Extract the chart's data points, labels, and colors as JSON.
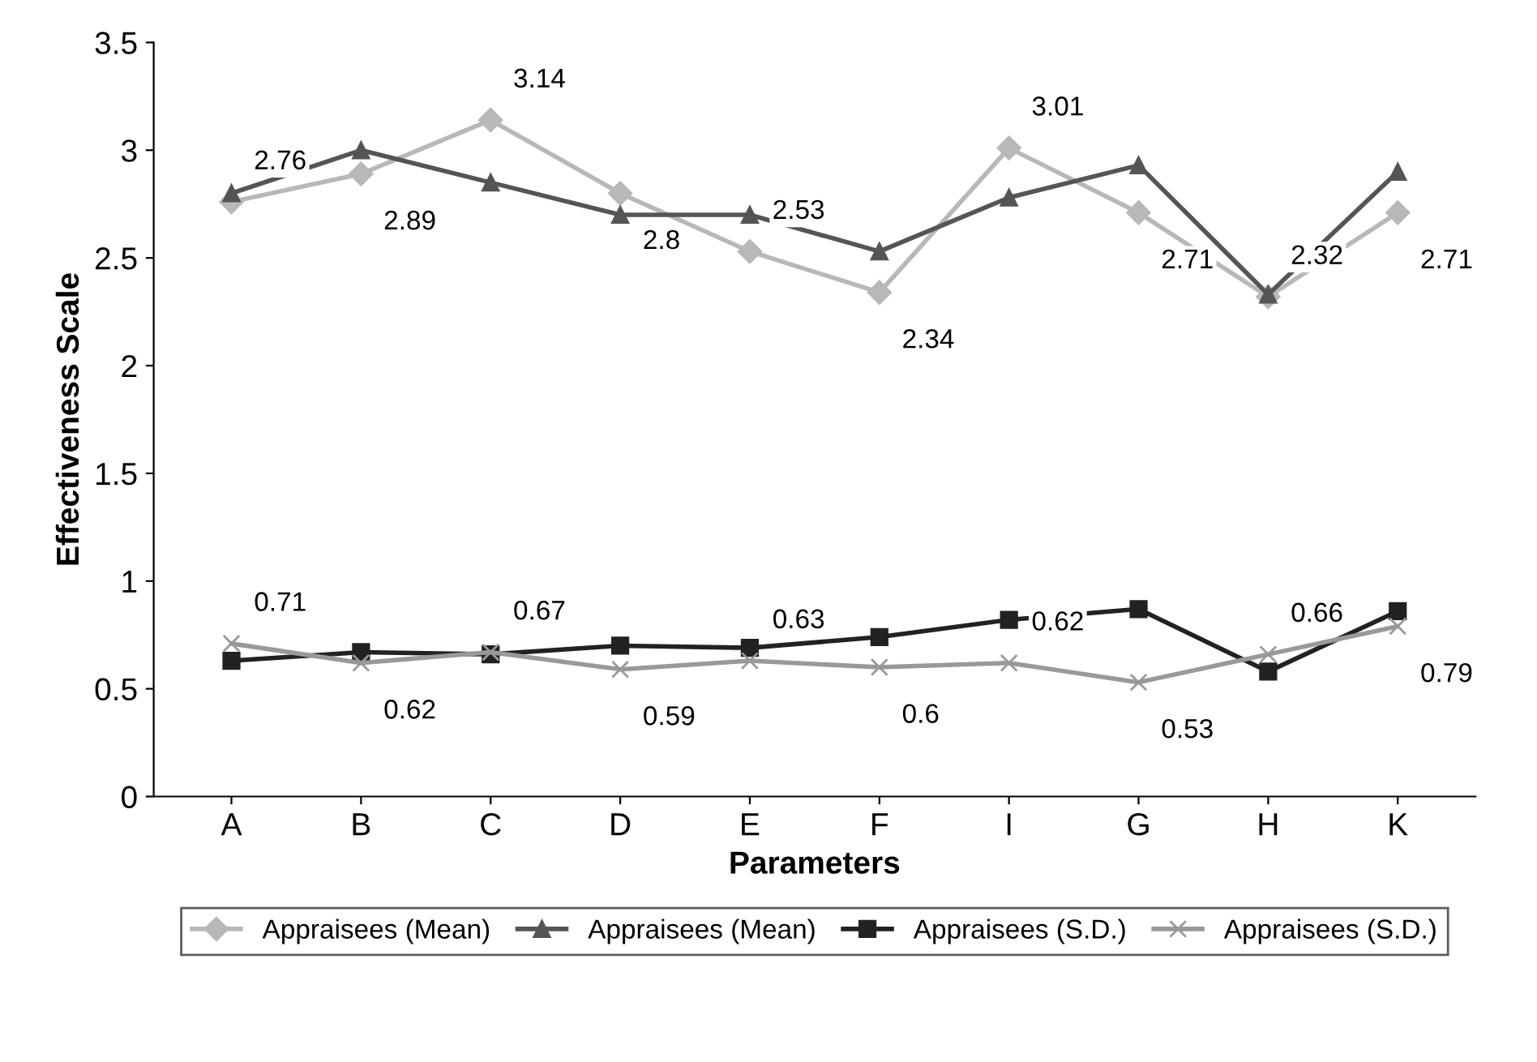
{
  "chart_data": {
    "type": "line",
    "xlabel": "Parameters",
    "ylabel": "Effectiveness Scale",
    "categories": [
      "A",
      "B",
      "C",
      "D",
      "E",
      "F",
      "I",
      "G",
      "H",
      "K"
    ],
    "ylim": [
      0,
      3.5
    ],
    "yticks": [
      0,
      0.5,
      1,
      1.5,
      2,
      2.5,
      3,
      3.5
    ],
    "grid": false,
    "legend": "bottom",
    "series": [
      {
        "name": "Appraisees (Mean)",
        "color": "#b8b8b8",
        "marker": "diamond",
        "values": [
          2.76,
          2.89,
          3.14,
          2.8,
          2.53,
          2.34,
          3.01,
          2.71,
          2.32,
          2.71
        ],
        "value_labels": [
          "2.76",
          "2.89",
          "3.14",
          "2.8",
          "2.53",
          "2.34",
          "3.01",
          "2.71",
          "2.32",
          "2.71"
        ]
      },
      {
        "name": "Appraisees (Mean)",
        "color": "#555555",
        "marker": "triangle",
        "values": [
          2.8,
          3.0,
          2.85,
          2.7,
          2.7,
          2.53,
          2.78,
          2.93,
          2.33,
          2.9
        ]
      },
      {
        "name": "Appraisees (S.D.)",
        "color": "#222222",
        "marker": "square",
        "values": [
          0.63,
          0.67,
          0.66,
          0.7,
          0.69,
          0.74,
          0.82,
          0.87,
          0.58,
          0.86
        ]
      },
      {
        "name": "Appraisees (S.D.)",
        "color": "#999999",
        "marker": "cross",
        "values": [
          0.71,
          0.62,
          0.67,
          0.59,
          0.63,
          0.6,
          0.62,
          0.53,
          0.66,
          0.79
        ],
        "value_labels": [
          "0.71",
          "0.62",
          "0.67",
          "0.59",
          "0.63",
          "0.6",
          "0.62",
          "0.53",
          "0.66",
          "0.79"
        ]
      }
    ]
  }
}
